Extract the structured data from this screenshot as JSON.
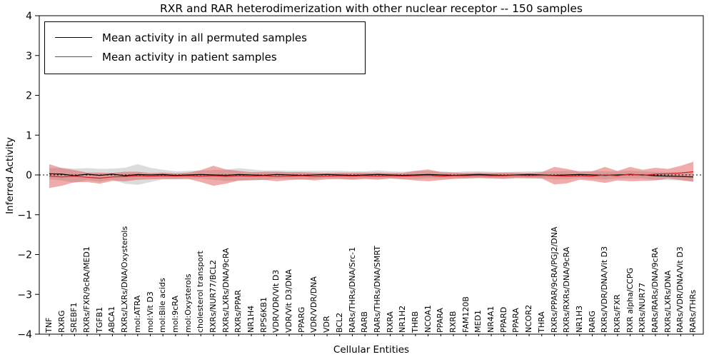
{
  "chart_data": {
    "type": "line",
    "title": "RXR and RAR heterodimerization with other nuclear receptor -- 150 samples",
    "xlabel": "Cellular Entities",
    "ylabel": "Inferred Activity",
    "ylim": [
      -4,
      4
    ],
    "yticks": [
      4,
      3,
      2,
      1,
      0,
      -1,
      -2,
      -3,
      -4
    ],
    "grid": false,
    "legend": {
      "position": "upper left",
      "entries": [
        {
          "label": "Mean activity in all permuted samples",
          "color": "#000000"
        },
        {
          "label": "Mean activity in patient samples",
          "color": "#d62222"
        }
      ]
    },
    "zero_line": {
      "style": "dotted",
      "color": "#000000",
      "y": 0
    },
    "categories": [
      "TNF",
      "RXRG",
      "SREBF1",
      "RXRs/FXR/9cRA/MED1",
      "TGFB1",
      "ABCA1",
      "RXRs/LXRs/DNA/Oxysterols",
      "mol:ATRA",
      "mol:Vit D3",
      "mol:Bile acids",
      "mol:9cRA",
      "mol:Oxysterols",
      "cholesterol transport",
      "RXRs/NUR77/BCL2",
      "RXRs/LXRs/DNA/9cRA",
      "RXRs/PPAR",
      "NR1H4",
      "RPS6KB1",
      "VDR/VDR/Vit D3",
      "VDR/Vit D3/DNA",
      "PPARG",
      "VDR/VDR/DNA",
      "VDR",
      "BCL2",
      "RARs/THRs/DNA/Src-1",
      "RARB",
      "RARs/THRs/DNA/SMRT",
      "RXRA",
      "NR1H2",
      "THRB",
      "NCOA1",
      "PPARA",
      "RXRB",
      "FAM120B",
      "MED1",
      "NR4A1",
      "PPARD",
      "PPARA",
      "NCOR2",
      "THRA",
      "RXRs/PPAR/9cRA/PGJ2/DNA",
      "RXRs/RXRs/DNA/9cRA",
      "NR1H3",
      "RARG",
      "RXRs/VDR/DNA/Vit D3",
      "RXRs/FXR",
      "RXR alpha/CCPG",
      "RXRs/NUR77",
      "RARs/RARs/DNA/9cRA",
      "RXRs/LXRs/DNA",
      "RARs/VDR/DNA/Vit D3",
      "RARs/THRs"
    ],
    "series": [
      {
        "name": "Mean activity in all permuted samples",
        "color": "#000000",
        "band_color": "#9a9a9a",
        "values": [
          0.03,
          0.02,
          -0.02,
          0.02,
          -0.01,
          0.02,
          -0.02,
          0.01,
          0.0,
          0.01,
          -0.01,
          0.0,
          0.01,
          0.0,
          -0.01,
          0.01,
          0.0,
          -0.01,
          0.01,
          0.0,
          -0.01,
          0.0,
          0.01,
          0.0,
          -0.01,
          0.0,
          0.01,
          0.0,
          -0.01,
          0.0,
          0.01,
          0.0,
          -0.01,
          0.0,
          0.01,
          0.0,
          -0.01,
          0.0,
          0.01,
          0.0,
          -0.01,
          0.0,
          0.01,
          0.0,
          -0.01,
          0.0,
          0.01,
          0.0,
          -0.02,
          -0.03,
          -0.04,
          -0.05
        ],
        "band": [
          0.14,
          0.16,
          0.18,
          0.15,
          0.16,
          0.14,
          0.2,
          0.26,
          0.18,
          0.12,
          0.1,
          0.1,
          0.1,
          0.12,
          0.14,
          0.16,
          0.14,
          0.12,
          0.1,
          0.1,
          0.11,
          0.1,
          0.09,
          0.1,
          0.1,
          0.09,
          0.1,
          0.09,
          0.09,
          0.1,
          0.09,
          0.09,
          0.08,
          0.09,
          0.08,
          0.08,
          0.08,
          0.08,
          0.08,
          0.09,
          0.1,
          0.1,
          0.09,
          0.1,
          0.1,
          0.09,
          0.1,
          0.09,
          0.1,
          0.1,
          0.1,
          0.12
        ]
      },
      {
        "name": "Mean activity in patient samples",
        "color": "#d62222",
        "band_color": "#dd4444",
        "values": [
          -0.03,
          -0.05,
          -0.03,
          -0.06,
          -0.08,
          -0.05,
          -0.04,
          -0.02,
          -0.03,
          -0.02,
          -0.03,
          -0.02,
          -0.03,
          -0.02,
          -0.04,
          -0.02,
          -0.03,
          -0.02,
          -0.04,
          -0.03,
          -0.02,
          -0.04,
          -0.03,
          -0.02,
          -0.03,
          -0.02,
          -0.03,
          -0.02,
          -0.03,
          -0.02,
          -0.01,
          -0.03,
          -0.02,
          -0.02,
          -0.01,
          -0.02,
          -0.02,
          -0.01,
          -0.02,
          -0.01,
          -0.02,
          -0.03,
          -0.02,
          -0.03,
          0.0,
          -0.02,
          0.02,
          -0.01,
          0.02,
          0.03,
          0.05,
          0.08
        ],
        "band": [
          0.3,
          0.22,
          0.15,
          0.12,
          0.14,
          0.1,
          0.12,
          0.1,
          0.08,
          0.08,
          0.07,
          0.08,
          0.15,
          0.25,
          0.18,
          0.12,
          0.1,
          0.1,
          0.12,
          0.1,
          0.09,
          0.1,
          0.08,
          0.08,
          0.09,
          0.08,
          0.09,
          0.07,
          0.08,
          0.12,
          0.15,
          0.1,
          0.08,
          0.07,
          0.07,
          0.07,
          0.08,
          0.07,
          0.07,
          0.08,
          0.22,
          0.18,
          0.1,
          0.12,
          0.2,
          0.12,
          0.18,
          0.14,
          0.16,
          0.12,
          0.18,
          0.25
        ]
      }
    ]
  }
}
